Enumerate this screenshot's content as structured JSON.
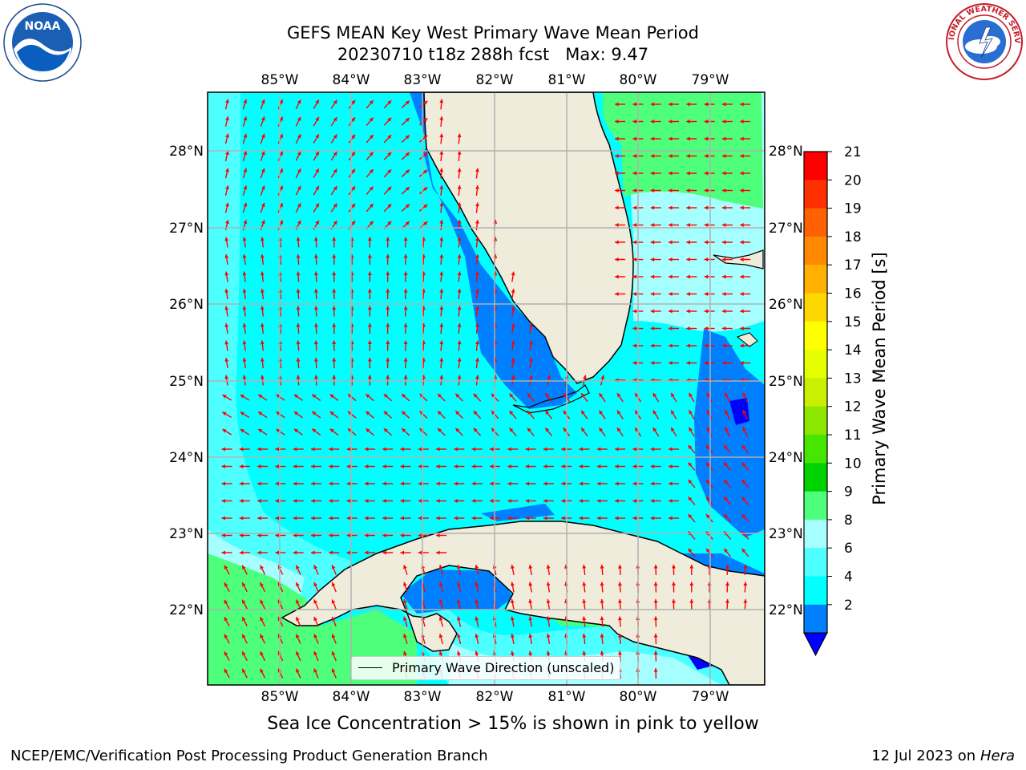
{
  "title": {
    "line1": "GEFS MEAN Key West Primary Wave Mean Period",
    "line2": "20230710 t18z 288h fcst   Max: 9.47"
  },
  "map": {
    "lon_labels": [
      "85°W",
      "84°W",
      "83°W",
      "82°W",
      "81°W",
      "80°W",
      "79°W"
    ],
    "lat_labels": [
      "28°N",
      "27°N",
      "26°N",
      "25°N",
      "24°N",
      "23°N",
      "22°N"
    ],
    "land_color": "#efecdc",
    "gridline_color": "#b0b0b0",
    "arrow_color": "#ff0000",
    "arrow_description_icon": "red-arrow-icon"
  },
  "legend": {
    "label": "Primary Wave Direction (unscaled)"
  },
  "colorbar": {
    "label": "Primary Wave Mean Period [s]",
    "ticks": [
      "21",
      "20",
      "19",
      "18",
      "17",
      "16",
      "15",
      "14",
      "13",
      "12",
      "11",
      "10",
      "9",
      "8",
      "6",
      "4",
      "2"
    ],
    "colors_top_to_bottom": [
      "#ff0000",
      "#ff3000",
      "#ff6000",
      "#ff8800",
      "#ffb000",
      "#ffd700",
      "#ffff00",
      "#e6ff00",
      "#c8f000",
      "#8ce600",
      "#46e600",
      "#00d200",
      "#4dff7a",
      "#a6ffff",
      "#4dffff",
      "#00ffff",
      "#0080ff"
    ],
    "extend_color": "#0000ff"
  },
  "ice_note": "Sea Ice Concentration > 15% is shown in pink to yellow",
  "footer": {
    "left": "NCEP/EMC/Verification Post Processing Product Generation Branch",
    "right_prefix": "12 Jul 2023 on ",
    "right_host": "Hera"
  },
  "logos": {
    "noaa": "NOAA",
    "nws": "NATIONAL WEATHER SERVICE"
  }
}
